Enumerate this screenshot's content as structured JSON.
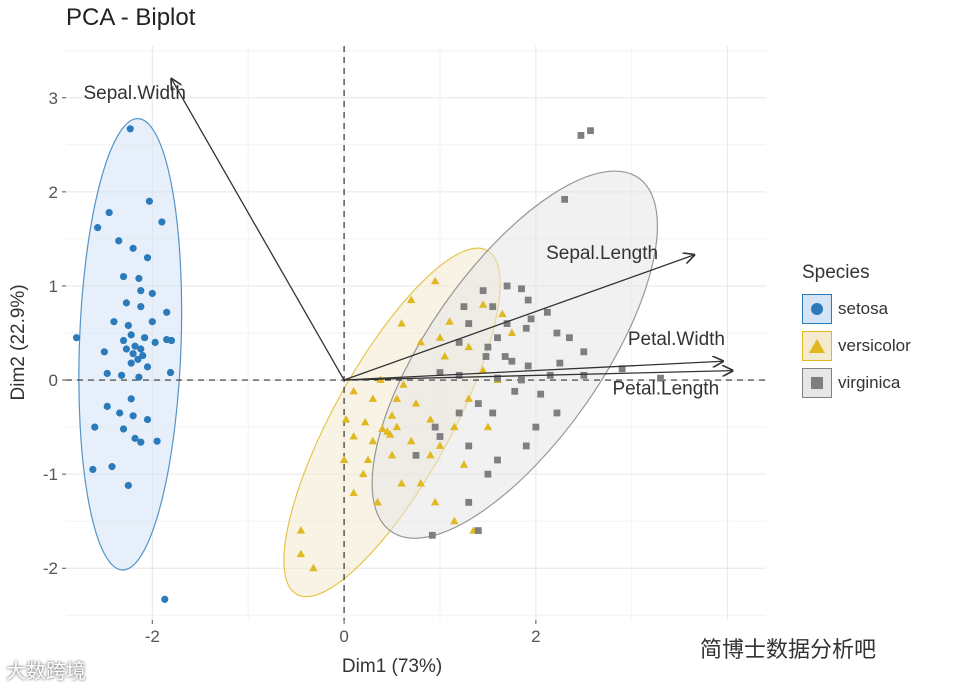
{
  "chart_data": {
    "type": "scatter",
    "title": "PCA - Biplot",
    "xlabel": "Dim1 (73%)",
    "ylabel": "Dim2 (22.9%)",
    "xlim": [
      -2.9,
      4.4
    ],
    "ylim": [
      -2.55,
      3.55
    ],
    "x_ticks": [
      -2,
      0,
      2
    ],
    "y_ticks": [
      -2,
      -1,
      0,
      1,
      2,
      3
    ],
    "grid": true,
    "legend_title": "Species",
    "legend_position": "right",
    "series": [
      {
        "name": "setosa",
        "shape": "circle",
        "color": "#2b7bba",
        "fill": "#d4e3f5",
        "ellipse": {
          "cx": -2.23,
          "cy": 0.38,
          "rx": 0.53,
          "ry": 2.4,
          "angle": 2
        },
        "points": [
          [
            -2.23,
            2.67
          ],
          [
            -2.03,
            1.9
          ],
          [
            -2.45,
            1.78
          ],
          [
            -2.57,
            1.62
          ],
          [
            -1.9,
            1.68
          ],
          [
            -2.35,
            1.48
          ],
          [
            -2.2,
            1.4
          ],
          [
            -2.05,
            1.3
          ],
          [
            -2.3,
            1.1
          ],
          [
            -2.14,
            1.08
          ],
          [
            -2.12,
            0.95
          ],
          [
            -2.0,
            0.92
          ],
          [
            -2.27,
            0.82
          ],
          [
            -2.12,
            0.78
          ],
          [
            -1.85,
            0.72
          ],
          [
            -2.4,
            0.62
          ],
          [
            -2.25,
            0.58
          ],
          [
            -2.0,
            0.62
          ],
          [
            -2.22,
            0.48
          ],
          [
            -2.3,
            0.42
          ],
          [
            -2.08,
            0.45
          ],
          [
            -1.97,
            0.4
          ],
          [
            -1.85,
            0.43
          ],
          [
            -2.18,
            0.36
          ],
          [
            -2.12,
            0.33
          ],
          [
            -2.27,
            0.33
          ],
          [
            -2.2,
            0.28
          ],
          [
            -2.1,
            0.26
          ],
          [
            -1.8,
            0.42
          ],
          [
            -2.5,
            0.3
          ],
          [
            -2.15,
            0.22
          ],
          [
            -2.22,
            0.18
          ],
          [
            -2.05,
            0.14
          ],
          [
            -2.32,
            0.05
          ],
          [
            -2.14,
            0.03
          ],
          [
            -2.47,
            0.07
          ],
          [
            -1.81,
            0.08
          ],
          [
            -2.79,
            0.45
          ],
          [
            -2.22,
            -0.2
          ],
          [
            -2.47,
            -0.28
          ],
          [
            -2.34,
            -0.35
          ],
          [
            -2.2,
            -0.38
          ],
          [
            -2.05,
            -0.42
          ],
          [
            -2.3,
            -0.52
          ],
          [
            -2.6,
            -0.5
          ],
          [
            -2.18,
            -0.62
          ],
          [
            -2.12,
            -0.66
          ],
          [
            -1.95,
            -0.65
          ],
          [
            -2.62,
            -0.95
          ],
          [
            -2.42,
            -0.92
          ],
          [
            -2.25,
            -1.12
          ],
          [
            -1.87,
            -2.33
          ]
        ]
      },
      {
        "name": "versicolor",
        "shape": "triangle",
        "color": "#e0b820",
        "fill": "#f3ead0",
        "ellipse": {
          "cx": 0.5,
          "cy": -0.45,
          "rx": 2.05,
          "ry": 0.62,
          "angle": -61
        },
        "points": [
          [
            0.95,
            1.05
          ],
          [
            0.6,
            0.6
          ],
          [
            1.1,
            0.62
          ],
          [
            0.8,
            0.4
          ],
          [
            1.05,
            0.25
          ],
          [
            0.1,
            -0.12
          ],
          [
            0.3,
            -0.2
          ],
          [
            0.55,
            -0.2
          ],
          [
            0.02,
            -0.42
          ],
          [
            0.22,
            -0.45
          ],
          [
            0.5,
            -0.38
          ],
          [
            0.4,
            -0.52
          ],
          [
            0.45,
            -0.55
          ],
          [
            0.55,
            -0.5
          ],
          [
            0.48,
            -0.58
          ],
          [
            0.1,
            -0.6
          ],
          [
            0.3,
            -0.65
          ],
          [
            0.7,
            -0.65
          ],
          [
            0.0,
            -0.85
          ],
          [
            0.25,
            -0.85
          ],
          [
            0.5,
            -0.8
          ],
          [
            0.9,
            -0.8
          ],
          [
            0.2,
            -1.0
          ],
          [
            1.0,
            -0.7
          ],
          [
            1.15,
            -0.5
          ],
          [
            0.35,
            -1.3
          ],
          [
            0.6,
            -1.1
          ],
          [
            0.8,
            -1.1
          ],
          [
            1.25,
            -0.9
          ],
          [
            1.5,
            -0.5
          ],
          [
            1.3,
            -0.2
          ],
          [
            1.6,
            0.0
          ],
          [
            1.75,
            0.5
          ],
          [
            1.45,
            0.8
          ],
          [
            1.65,
            0.7
          ],
          [
            -0.45,
            -1.6
          ],
          [
            -0.45,
            -1.85
          ],
          [
            -0.32,
            -2.0
          ],
          [
            0.1,
            -1.2
          ],
          [
            1.35,
            -1.6
          ],
          [
            1.15,
            -1.5
          ],
          [
            0.95,
            -1.3
          ],
          [
            0.7,
            0.85
          ],
          [
            1.0,
            0.45
          ],
          [
            1.3,
            0.35
          ],
          [
            1.45,
            0.1
          ],
          [
            0.75,
            -0.25
          ],
          [
            0.9,
            -0.42
          ],
          [
            0.62,
            -0.05
          ],
          [
            0.38,
            0.0
          ]
        ]
      },
      {
        "name": "virginica",
        "shape": "square",
        "color": "#7f7f7f",
        "fill": "#e6e6e6",
        "ellipse": {
          "cx": 1.78,
          "cy": 0.27,
          "rx": 2.25,
          "ry": 0.92,
          "angle": -55
        },
        "points": [
          [
            2.57,
            2.65
          ],
          [
            2.47,
            2.6
          ],
          [
            2.3,
            1.92
          ],
          [
            1.85,
            0.97
          ],
          [
            1.92,
            0.85
          ],
          [
            1.7,
            1.0
          ],
          [
            1.45,
            0.95
          ],
          [
            1.55,
            0.78
          ],
          [
            2.12,
            0.72
          ],
          [
            1.25,
            0.78
          ],
          [
            1.95,
            0.65
          ],
          [
            1.9,
            0.55
          ],
          [
            1.7,
            0.6
          ],
          [
            2.22,
            0.5
          ],
          [
            1.6,
            0.45
          ],
          [
            1.3,
            0.6
          ],
          [
            2.35,
            0.45
          ],
          [
            1.5,
            0.35
          ],
          [
            2.5,
            0.3
          ],
          [
            1.2,
            0.4
          ],
          [
            1.75,
            0.2
          ],
          [
            1.92,
            0.15
          ],
          [
            2.25,
            0.18
          ],
          [
            1.68,
            0.25
          ],
          [
            1.48,
            0.25
          ],
          [
            2.9,
            0.12
          ],
          [
            1.6,
            0.02
          ],
          [
            1.2,
            0.05
          ],
          [
            1.0,
            0.08
          ],
          [
            1.78,
            -0.12
          ],
          [
            1.4,
            -0.25
          ],
          [
            1.55,
            -0.35
          ],
          [
            1.2,
            -0.35
          ],
          [
            0.95,
            -0.5
          ],
          [
            1.0,
            -0.6
          ],
          [
            1.3,
            -0.7
          ],
          [
            1.9,
            -0.7
          ],
          [
            1.6,
            -0.85
          ],
          [
            2.0,
            -0.5
          ],
          [
            0.75,
            -0.8
          ],
          [
            1.5,
            -1.0
          ],
          [
            1.3,
            -1.3
          ],
          [
            1.4,
            -1.6
          ],
          [
            0.92,
            -1.65
          ],
          [
            2.22,
            -0.35
          ],
          [
            2.05,
            -0.15
          ],
          [
            1.85,
            0.0
          ],
          [
            2.15,
            0.05
          ],
          [
            2.5,
            0.05
          ],
          [
            3.3,
            0.02
          ]
        ]
      }
    ],
    "variables": [
      {
        "name": "Sepal.Width",
        "x": -1.8,
        "y": 3.2
      },
      {
        "name": "Sepal.Length",
        "x": 3.65,
        "y": 1.33
      },
      {
        "name": "Petal.Width",
        "x": 3.95,
        "y": 0.2
      },
      {
        "name": "Petal.Length",
        "x": 4.05,
        "y": 0.1
      }
    ]
  },
  "watermarks": {
    "left": "大数跨境",
    "right": "简博士数据分析吧"
  }
}
